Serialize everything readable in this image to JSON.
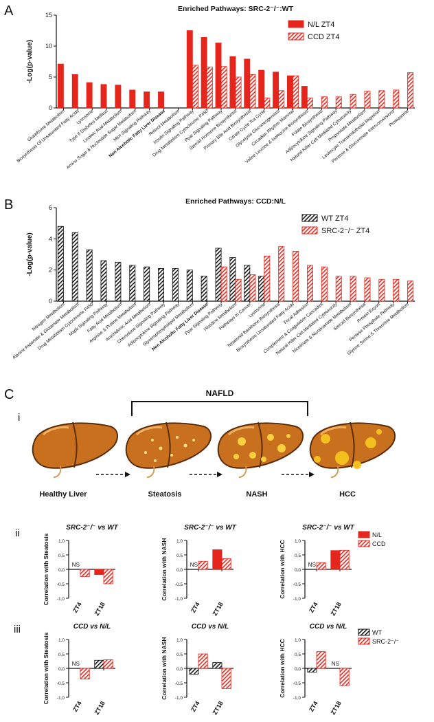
{
  "panels": [
    "A",
    "B",
    "C"
  ],
  "subpanels": [
    "i",
    "ii",
    "iii"
  ],
  "diagram": {
    "bracket_label": "NAFLD",
    "stages": [
      "Healthy Liver",
      "Steatosis",
      "NASH",
      "HCC"
    ]
  },
  "chart_data": [
    {
      "type": "bar",
      "title": "Enriched Pathways: SRC-2⁻/⁻:WT",
      "ylabel": "-Log(p-value)",
      "categories": [
        "Glutathione Metabolism",
        "Biosynthesis Of Unsaturated Fatty Acids",
        "Lysosome",
        "Type II Diabetes Mellitus",
        "Linoleic Acid Metabolism",
        "Amino Sugar & Nucleotide Sugar Metabolism",
        "Mtor Signaling Pathway",
        "Non Alcoholic Fatty Liver Disease",
        "Retinol Metabolism",
        "Insulin Signaling Pathway",
        "Drug Metabolism Cytochrome P450",
        "Ppar Signaling Pathway",
        "Steroid Hormone Biosynthesis",
        "Primary Bile Acid Biosynthesis",
        "Citrate Cycle Tca Cycle",
        "Glycolysis Gluconeogenesis",
        "Circadian Rhythm Mammal",
        "Valine Leucine & Isoleucine Biosynthesis",
        "Folate Biosynthesis",
        "Adipocytokine Signaling Pathway",
        "Natural Killer Cell Mediated Cytotoxicity",
        "Propanoate Metabolism",
        "Leukocyte Transendothelial Migration",
        "Pentose & Glucuronate Interconversions",
        "Proteasome"
      ],
      "series": [
        {
          "name": "N/L ZT4",
          "color": "#e5261c",
          "pattern": "solid",
          "values": [
            7.1,
            5.4,
            4.1,
            3.8,
            3.7,
            2.9,
            2.6,
            2.6,
            null,
            12.5,
            11.4,
            10.5,
            8.3,
            7.9,
            6.1,
            5.8,
            5.2,
            3.5,
            null,
            null,
            null,
            null,
            null,
            null,
            null
          ]
        },
        {
          "name": "CCD ZT4",
          "color": "#e5261c",
          "pattern": "hatch",
          "values": [
            null,
            null,
            null,
            null,
            null,
            null,
            null,
            null,
            null,
            6.9,
            6.6,
            6.7,
            5.0,
            5.4,
            1.6,
            2.8,
            5.2,
            1.6,
            1.8,
            1.8,
            2.2,
            2.7,
            2.8,
            2.9,
            5.7
          ]
        }
      ],
      "ylim": [
        0,
        15
      ],
      "yticks": [
        0,
        5,
        10,
        15
      ],
      "legend": "upper right",
      "bold_category": 7
    },
    {
      "type": "bar",
      "title": "Enriched Pathways: CCD:N/L",
      "ylabel": "-Log(p-value)",
      "categories": [
        "Nitrogen Metabolism",
        "Alanine Aspartate & Glutamate Metabolism",
        "Drug Metabolism Cytochrome P450",
        "Mapk Signaling Pathway",
        "Fatty Acid Metabolism",
        "Arginine & Proline Metabolism",
        "Arachidonic Acid Metabolism",
        "Chemokine Signaling Pathway",
        "Adipocytokine Signaling Pathway",
        "Glycerophospholipid Metabolism",
        "Non Alcoholic Fatty Liver Disease",
        "Ppar Signaling Pathway",
        "Histidine Metabolism",
        "Pathways In Cancer",
        "Lysosome",
        "Terpenoid Backbone Biosynthesis",
        "Biosynthesis Unsaturated Fatty Acids",
        "Focal Adhesion",
        "Complement & Coagulation Cascades",
        "Natural Killer Cell Mediated Cytotoxicity",
        "Nicotinate & Nicotinamide Metabolism",
        "Steroid Biosynthesis",
        "Protein Export",
        "Pentose Phosphate Pathway",
        "Glycine Serine & Threonine Metabolism"
      ],
      "series": [
        {
          "name": "WT ZT4",
          "color": "#111111",
          "pattern": "hatch",
          "values": [
            4.8,
            4.4,
            3.3,
            2.6,
            2.5,
            2.3,
            2.2,
            2.1,
            2.1,
            2.0,
            1.6,
            3.4,
            2.8,
            2.3,
            1.6,
            null,
            null,
            null,
            null,
            null,
            null,
            null,
            null,
            null,
            null
          ]
        },
        {
          "name": "SRC-2⁻/⁻ ZT4",
          "color": "#e5261c",
          "pattern": "hatch",
          "values": [
            null,
            null,
            null,
            null,
            null,
            null,
            null,
            null,
            null,
            null,
            null,
            2.2,
            1.4,
            1.7,
            2.9,
            3.5,
            3.2,
            2.3,
            2.2,
            1.6,
            1.6,
            1.5,
            1.4,
            1.4,
            1.3
          ]
        }
      ],
      "ylim": [
        0,
        6
      ],
      "yticks": [
        0,
        2,
        4,
        6
      ],
      "legend": "upper right",
      "bold_category": 10
    },
    {
      "type": "bar",
      "title": "SRC-2⁻/⁻ vs WT",
      "ylabel": "Correlation with Steatosis",
      "categories": [
        "ZT4",
        "ZT18"
      ],
      "series": [
        {
          "color": "#e5261c",
          "pattern": "solid",
          "values": [
            null,
            -0.18
          ]
        },
        {
          "color": "#e5261c",
          "pattern": "hatch",
          "values": [
            -0.25,
            -0.5
          ]
        }
      ],
      "ylim": [
        -1,
        1
      ],
      "yticks": [
        {
          "value": -1,
          "label": "-1.0"
        },
        {
          "value": -0.5,
          "label": "-0.5"
        },
        {
          "value": 0,
          "label": "0.0"
        },
        {
          "value": 0.5,
          "label": "0.5"
        },
        {
          "value": 1,
          "label": "1.0"
        }
      ],
      "annotations": [
        {
          "text": "NS",
          "category": "ZT4"
        }
      ]
    },
    {
      "type": "bar",
      "title": "SRC-2⁻/⁻ vs WT",
      "ylabel": "Correlation with NASH",
      "categories": [
        "ZT4",
        "ZT18"
      ],
      "series": [
        {
          "color": "#e5261c",
          "pattern": "solid",
          "values": [
            null,
            0.68
          ]
        },
        {
          "color": "#e5261c",
          "pattern": "hatch",
          "values": [
            0.28,
            0.37
          ]
        }
      ],
      "ylim": [
        -1,
        1
      ],
      "yticks": [
        {
          "value": -1,
          "label": "-1.0"
        },
        {
          "value": -0.5,
          "label": "-0.5"
        },
        {
          "value": 0,
          "label": "0.0"
        },
        {
          "value": 0.5,
          "label": "0.5"
        },
        {
          "value": 1,
          "label": "1.0"
        }
      ],
      "annotations": [
        {
          "text": "NS",
          "category": "ZT4"
        }
      ]
    },
    {
      "type": "bar",
      "title": "SRC-2⁻/⁻ vs WT",
      "ylabel": "Correlation with HCC",
      "categories": [
        "ZT4",
        "ZT18"
      ],
      "series": [
        {
          "name": "N/L",
          "color": "#e5261c",
          "pattern": "solid",
          "values": [
            null,
            0.65
          ]
        },
        {
          "name": "CCD",
          "color": "#e5261c",
          "pattern": "hatch",
          "values": [
            0.23,
            0.66
          ]
        }
      ],
      "ylim": [
        -1,
        1
      ],
      "yticks": [
        {
          "value": -1,
          "label": "-1.0"
        },
        {
          "value": -0.5,
          "label": "-0.5"
        },
        {
          "value": 0,
          "label": "0.0"
        },
        {
          "value": 0.5,
          "label": "0.5"
        },
        {
          "value": 1,
          "label": "1.0"
        }
      ],
      "annotations": [
        {
          "text": "NS",
          "category": "ZT4"
        }
      ],
      "legend": "outside right"
    },
    {
      "type": "bar",
      "title": "CCD vs N/L",
      "ylabel": "Correlation with Steatosis",
      "categories": [
        "ZT4",
        "ZT18"
      ],
      "series": [
        {
          "color": "#111111",
          "pattern": "hatch",
          "values": [
            null,
            0.28
          ]
        },
        {
          "color": "#e5261c",
          "pattern": "hatch",
          "values": [
            -0.37,
            0.3
          ]
        }
      ],
      "ylim": [
        -1,
        1
      ],
      "yticks": [
        {
          "value": -1,
          "label": "-1.0"
        },
        {
          "value": -0.5,
          "label": "-0.5"
        },
        {
          "value": 0,
          "label": "0.0"
        },
        {
          "value": 0.5,
          "label": "0.5"
        },
        {
          "value": 1,
          "label": "1.0"
        }
      ],
      "annotations": [
        {
          "text": "NS",
          "category": "ZT4"
        }
      ]
    },
    {
      "type": "bar",
      "title": "CCD vs N/L",
      "ylabel": "Correlation with NASH",
      "categories": [
        "ZT4",
        "ZT18"
      ],
      "series": [
        {
          "color": "#111111",
          "pattern": "hatch",
          "values": [
            -0.2,
            0.2
          ]
        },
        {
          "color": "#e5261c",
          "pattern": "hatch",
          "values": [
            0.5,
            -0.7
          ]
        }
      ],
      "ylim": [
        -1,
        1
      ],
      "yticks": [
        {
          "value": -1,
          "label": "-1.0"
        },
        {
          "value": -0.5,
          "label": "-0.5"
        },
        {
          "value": 0,
          "label": "0.0"
        },
        {
          "value": 0.5,
          "label": "0.5"
        },
        {
          "value": 1,
          "label": "1.0"
        }
      ]
    },
    {
      "type": "bar",
      "title": "CCD vs N/L",
      "ylabel": "Correlation with HCC",
      "categories": [
        "ZT4",
        "ZT18"
      ],
      "series": [
        {
          "name": "WT",
          "color": "#111111",
          "pattern": "hatch",
          "values": [
            -0.13,
            null
          ]
        },
        {
          "name": "SRC-2⁻/⁻",
          "color": "#e5261c",
          "pattern": "hatch",
          "values": [
            0.58,
            -0.6
          ]
        }
      ],
      "ylim": [
        -1,
        1
      ],
      "yticks": [
        {
          "value": -1,
          "label": "-1.0"
        },
        {
          "value": -0.5,
          "label": "-0.5"
        },
        {
          "value": 0,
          "label": "0.0"
        },
        {
          "value": 0.5,
          "label": "0.5"
        },
        {
          "value": 1,
          "label": "1.0"
        }
      ],
      "annotations": [
        {
          "text": "NS",
          "category": "ZT18"
        }
      ],
      "legend": "outside right"
    }
  ]
}
